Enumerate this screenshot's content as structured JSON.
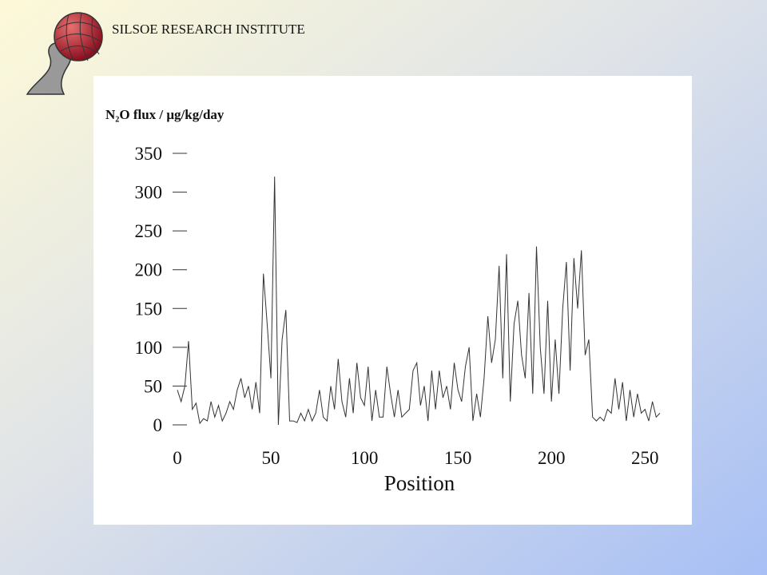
{
  "header": {
    "title": "SILSOE RESEARCH INSTITUTE"
  },
  "chart_data": {
    "type": "line",
    "ylabel": "N₂O flux / μg/kg/day",
    "xlabel": "Position",
    "color": "#333333",
    "xlim": [
      0,
      258
    ],
    "xticks": [
      0,
      50,
      100,
      150,
      200,
      250
    ],
    "ylim": [
      0,
      350
    ],
    "yticks": [
      0,
      50,
      100,
      150,
      200,
      250,
      300,
      350
    ],
    "series": [
      {
        "name": "N2O flux",
        "color": "#333333",
        "x": [
          0,
          2,
          4,
          6,
          8,
          10,
          12,
          14,
          16,
          18,
          20,
          22,
          24,
          26,
          28,
          30,
          32,
          34,
          36,
          38,
          40,
          42,
          44,
          46,
          48,
          50,
          52,
          54,
          56,
          58,
          60,
          62,
          64,
          66,
          68,
          70,
          72,
          74,
          76,
          78,
          80,
          82,
          84,
          86,
          88,
          90,
          92,
          94,
          96,
          98,
          100,
          102,
          104,
          106,
          108,
          110,
          112,
          114,
          116,
          118,
          120,
          122,
          124,
          126,
          128,
          130,
          132,
          134,
          136,
          138,
          140,
          142,
          144,
          146,
          148,
          150,
          152,
          154,
          156,
          158,
          160,
          162,
          164,
          166,
          168,
          170,
          172,
          174,
          176,
          178,
          180,
          182,
          184,
          186,
          188,
          190,
          192,
          194,
          196,
          198,
          200,
          202,
          204,
          206,
          208,
          210,
          212,
          214,
          216,
          218,
          220,
          222,
          224,
          226,
          228,
          230,
          232,
          234,
          236,
          238,
          240,
          242,
          244,
          246,
          248,
          250,
          252,
          254,
          256,
          258
        ],
        "values": [
          45,
          30,
          50,
          108,
          20,
          28,
          2,
          8,
          5,
          30,
          10,
          25,
          5,
          15,
          30,
          20,
          45,
          60,
          35,
          50,
          20,
          55,
          15,
          195,
          130,
          60,
          320,
          0,
          110,
          148,
          5,
          5,
          3,
          15,
          5,
          20,
          5,
          15,
          45,
          10,
          5,
          50,
          20,
          85,
          30,
          10,
          60,
          15,
          80,
          35,
          25,
          75,
          5,
          45,
          10,
          10,
          75,
          40,
          10,
          45,
          10,
          15,
          20,
          70,
          80,
          25,
          50,
          5,
          70,
          20,
          70,
          35,
          50,
          20,
          80,
          45,
          30,
          75,
          100,
          5,
          40,
          10,
          60,
          140,
          80,
          110,
          205,
          60,
          220,
          30,
          130,
          160,
          90,
          60,
          170,
          40,
          230,
          100,
          40,
          160,
          30,
          110,
          40,
          150,
          210,
          70,
          215,
          150,
          225,
          90,
          110,
          10,
          5,
          10,
          5,
          20,
          15,
          60,
          20,
          55,
          5,
          45,
          10,
          40,
          15,
          20,
          5,
          30,
          10,
          15
        ]
      }
    ]
  }
}
